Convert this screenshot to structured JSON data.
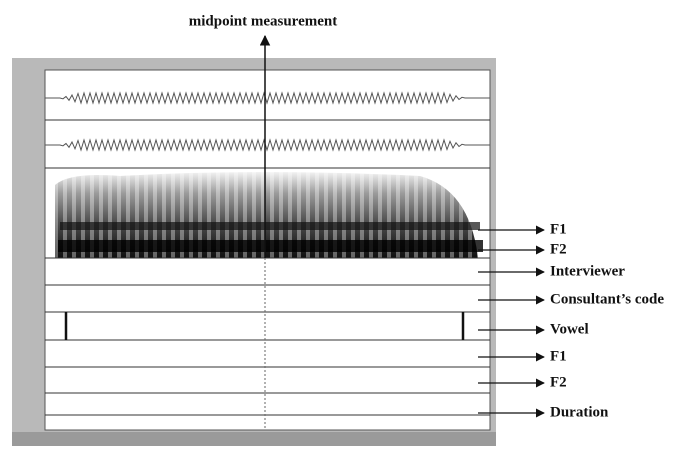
{
  "title": "midpoint measurement",
  "annotations": [
    "F1",
    "F2",
    "Interviewer",
    "Consultant’s code",
    "Vowel",
    "F1",
    "F2",
    "Duration"
  ]
}
